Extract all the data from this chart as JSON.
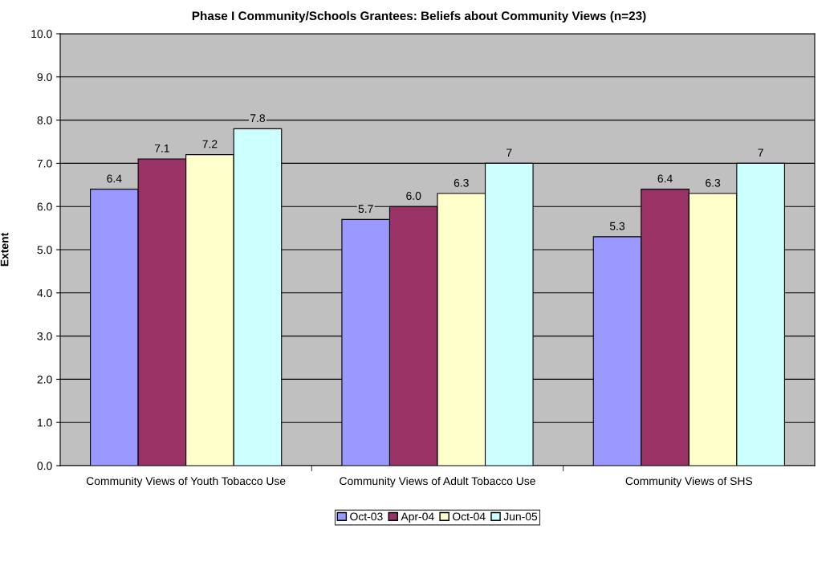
{
  "chart_data": {
    "type": "bar",
    "title": "Phase I Community/Schools Grantees: Beliefs about Community Views (n=23)",
    "ylabel": "Extent",
    "categories": [
      "Community Views of Youth Tobacco Use",
      "Community Views of Adult Tobacco Use",
      "Community Views of SHS"
    ],
    "series": [
      {
        "name": "Oct-03",
        "color": "#9999ff",
        "values": [
          6.4,
          5.7,
          5.3
        ],
        "value_labels": [
          "6.4",
          "5.7",
          "5.3"
        ]
      },
      {
        "name": "Apr-04",
        "color": "#993366",
        "values": [
          7.1,
          6.0,
          6.4
        ],
        "value_labels": [
          "7.1",
          "6.0",
          "6.4"
        ]
      },
      {
        "name": "Oct-04",
        "color": "#ffffcc",
        "values": [
          7.2,
          6.3,
          6.3
        ],
        "value_labels": [
          "7.2",
          "6.3",
          "6.3"
        ]
      },
      {
        "name": "Jun-05",
        "color": "#ccffff",
        "values": [
          7.8,
          7,
          7
        ],
        "value_labels": [
          "7.8",
          "7",
          "7"
        ]
      }
    ],
    "ylim": [
      0,
      10
    ],
    "yticks": [
      {
        "value": 0,
        "label": "0.0"
      },
      {
        "value": 1,
        "label": "1.0"
      },
      {
        "value": 2,
        "label": "2.0"
      },
      {
        "value": 3,
        "label": "3.0"
      },
      {
        "value": 4,
        "label": "4.0"
      },
      {
        "value": 5,
        "label": "5.0"
      },
      {
        "value": 6,
        "label": "6.0"
      },
      {
        "value": 7,
        "label": "7.0"
      },
      {
        "value": 8,
        "label": "8.0"
      },
      {
        "value": 9,
        "label": "9.0"
      },
      {
        "value": 10,
        "label": "10.0"
      }
    ],
    "grid": "y",
    "legend": "bottom"
  }
}
